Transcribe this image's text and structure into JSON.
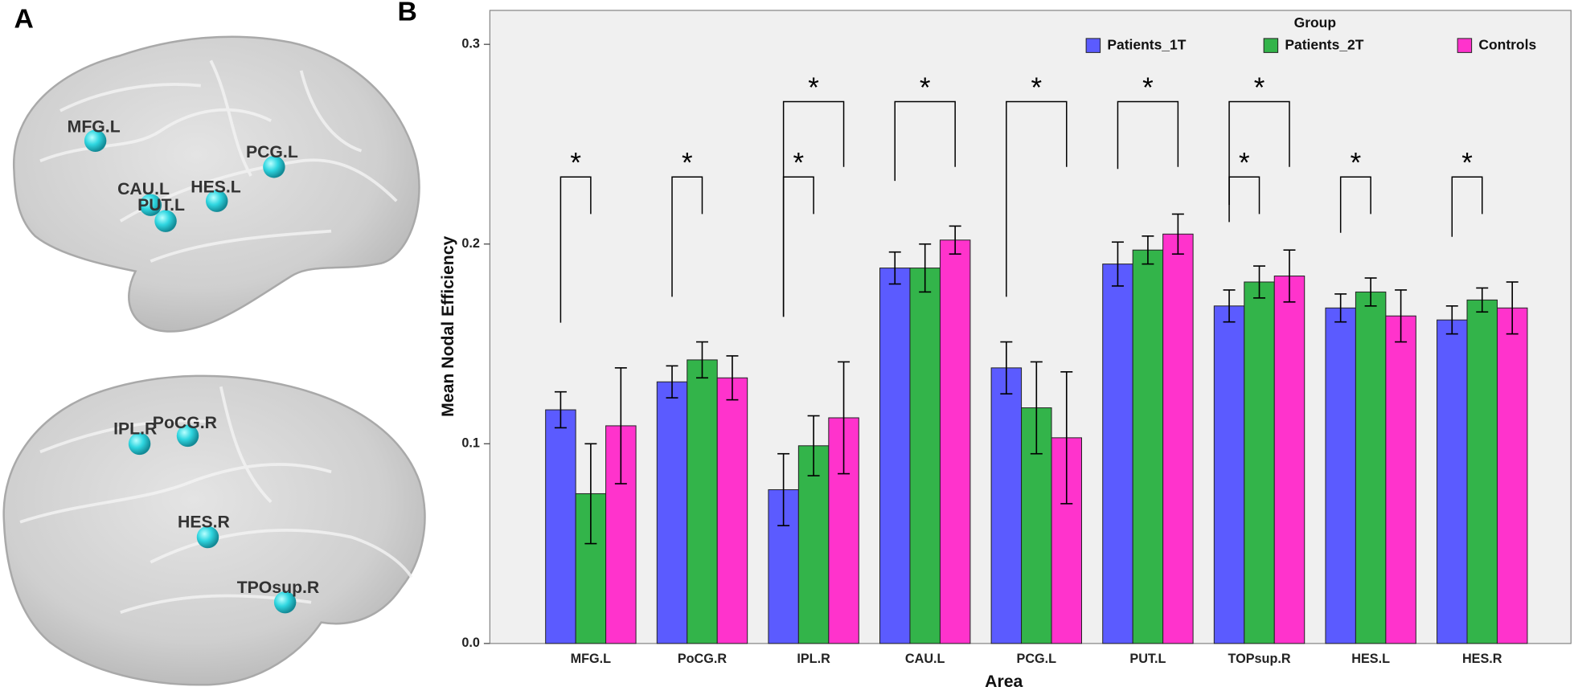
{
  "figure": {
    "panel_a": "A",
    "panel_b": "B",
    "brain_top": [
      "MFG.L",
      "PCG.L",
      "CAU.L",
      "PUT.L",
      "HES.L"
    ],
    "brain_bottom": [
      "IPL.R",
      "PoCG.R",
      "HES.R",
      "TPOsup.R"
    ]
  },
  "chart_data": {
    "type": "bar",
    "x_label": "Area",
    "y_label": "Mean Nodal Efficiency",
    "legend_title": "Group",
    "legend_position": "top-right",
    "categories": [
      "MFG.L",
      "PoCG.R",
      "IPL.R",
      "CAU.L",
      "PCG.L",
      "PUT.L",
      "TOPsup.R",
      "HES.L",
      "HES.R"
    ],
    "series": [
      {
        "name": "Patients_1T",
        "color": "#5b5bff",
        "values": [
          0.117,
          0.131,
          0.077,
          0.188,
          0.138,
          0.19,
          0.169,
          0.168,
          0.162
        ],
        "errors": [
          0.009,
          0.008,
          0.018,
          0.008,
          0.013,
          0.011,
          0.008,
          0.007,
          0.007
        ]
      },
      {
        "name": "Patients_2T",
        "color": "#33b44a",
        "values": [
          0.075,
          0.142,
          0.099,
          0.188,
          0.118,
          0.197,
          0.181,
          0.176,
          0.172
        ],
        "errors": [
          0.025,
          0.009,
          0.015,
          0.012,
          0.023,
          0.007,
          0.008,
          0.007,
          0.006
        ]
      },
      {
        "name": "Controls",
        "color": "#ff33cc",
        "values": [
          0.109,
          0.133,
          0.113,
          0.202,
          0.103,
          0.205,
          0.184,
          0.164,
          0.168
        ],
        "errors": [
          0.029,
          0.011,
          0.028,
          0.007,
          0.033,
          0.01,
          0.013,
          0.013,
          0.013
        ]
      }
    ],
    "ylim": [
      0,
      0.317
    ],
    "yticks": [
      {
        "value": 0,
        "label": "0.0"
      },
      0.1,
      0.2,
      0.3
    ],
    "grid": false,
    "annotations": [
      {
        "text": "*",
        "category": "MFG.L",
        "between": [
          "Patients_1T",
          "Patients_2T"
        ]
      },
      {
        "text": "*",
        "category": "PoCG.R",
        "between": [
          "Patients_1T",
          "Patients_2T"
        ]
      },
      {
        "text": "*",
        "category": "IPL.R",
        "between": [
          "Patients_1T",
          "Patients_2T"
        ]
      },
      {
        "text": "*",
        "category": "IPL.R",
        "between": [
          "Patients_1T",
          "Controls"
        ]
      },
      {
        "text": "*",
        "category": "CAU.L",
        "between": [
          "Patients_1T",
          "Controls"
        ]
      },
      {
        "text": "*",
        "category": "PCG.L",
        "between": [
          "Patients_1T",
          "Controls"
        ]
      },
      {
        "text": "*",
        "category": "PUT.L",
        "between": [
          "Patients_1T",
          "Controls"
        ]
      },
      {
        "text": "*",
        "category": "TOPsup.R",
        "between": [
          "Patients_1T",
          "Patients_2T"
        ]
      },
      {
        "text": "*",
        "category": "TOPsup.R",
        "between": [
          "Patients_1T",
          "Controls"
        ]
      },
      {
        "text": "*",
        "category": "HES.L",
        "between": [
          "Patients_1T",
          "Patients_2T"
        ]
      },
      {
        "text": "*",
        "category": "HES.R",
        "between": [
          "Patients_1T",
          "Patients_2T"
        ]
      }
    ]
  }
}
